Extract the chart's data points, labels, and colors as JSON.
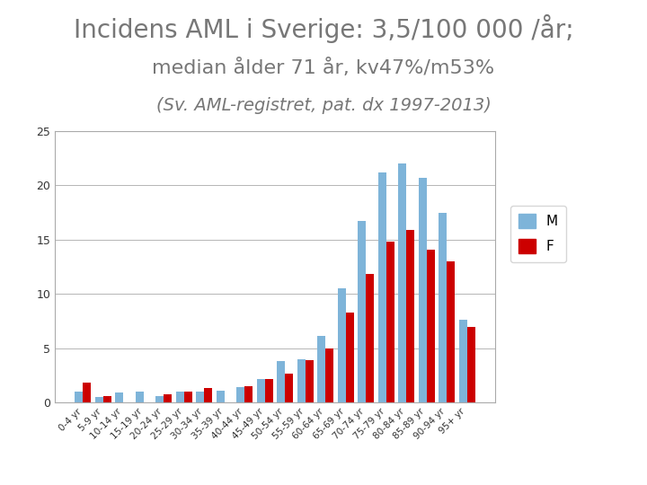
{
  "title_line1": "Incidens AML i Sverige: 3,5/100 000 /år;",
  "title_line2": "median ålder 71 år, kv47%/m53%",
  "title_line3": "(Sv. AML-registret, pat. dx 1997-2013)",
  "categories": [
    "0-4 yr",
    "5-9 yr",
    "10-14 yr",
    "15-19 yr",
    "20-24 yr",
    "25-29 yr",
    "30-34 yr",
    "35-39 yr",
    "40-44 yr",
    "45-49 yr",
    "50-54 yr",
    "55-59 yr",
    "60-64 yr",
    "65-69 yr",
    "70-74 yr",
    "75-79 yr",
    "80-84 yr",
    "85-89 yr",
    "90-94 yr",
    "95+ yr"
  ],
  "M_values": [
    1.0,
    0.5,
    0.9,
    1.0,
    0.6,
    1.0,
    1.0,
    1.1,
    1.4,
    2.2,
    3.8,
    4.0,
    6.1,
    10.5,
    16.7,
    21.2,
    22.0,
    20.7,
    17.5,
    7.6
  ],
  "F_values": [
    1.8,
    0.6,
    0.0,
    0.0,
    0.8,
    1.0,
    1.3,
    0.0,
    1.5,
    2.2,
    2.7,
    3.9,
    5.0,
    8.3,
    11.8,
    14.8,
    15.9,
    14.1,
    13.0,
    7.0
  ],
  "M_color": "#7EB4D9",
  "F_color": "#CC0000",
  "ylim": [
    0,
    25
  ],
  "yticks": [
    0,
    5,
    10,
    15,
    20,
    25
  ],
  "legend_labels": [
    "M",
    "F"
  ],
  "title_color": "#777777",
  "title_fontsize": 20,
  "subtitle_fontsize": 16,
  "italic_fontsize": 14
}
